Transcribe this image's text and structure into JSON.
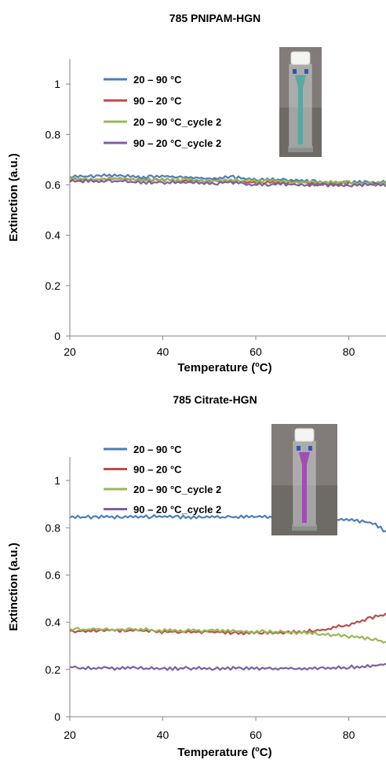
{
  "chart_data": [
    {
      "type": "line",
      "title": "785 PNIPAM-HGN",
      "xlabel": "Temperature (",
      "xlabel_sup": "o",
      "xlabel_end": "C)",
      "ylabel": "Extinction (a.u.)",
      "xlim": [
        20,
        88
      ],
      "ylim": [
        0,
        1.1
      ],
      "xticks": [
        20,
        40,
        60,
        80
      ],
      "yticks": [
        0,
        0.2,
        0.4,
        0.6,
        0.8,
        1
      ],
      "x": [
        20,
        25,
        30,
        35,
        40,
        45,
        50,
        55,
        60,
        65,
        70,
        75,
        80,
        85,
        88
      ],
      "legend_position": "top-left",
      "inset_image": "cuvette containing pale blue-green solution",
      "series": [
        {
          "name": "20 – 90 °C",
          "color": "#4a7ebb",
          "values": [
            0.63,
            0.635,
            0.64,
            0.63,
            0.635,
            0.63,
            0.625,
            0.63,
            0.62,
            0.62,
            0.615,
            0.61,
            0.61,
            0.61,
            0.61
          ]
        },
        {
          "name": "90 – 20 °C",
          "color": "#be4b48",
          "values": [
            0.62,
            0.62,
            0.625,
            0.62,
            0.62,
            0.615,
            0.615,
            0.615,
            0.61,
            0.61,
            0.61,
            0.6,
            0.605,
            0.6,
            0.605
          ]
        },
        {
          "name": "20 – 90 °C_cycle 2",
          "color": "#98b954",
          "values": [
            0.625,
            0.62,
            0.625,
            0.62,
            0.62,
            0.62,
            0.615,
            0.62,
            0.615,
            0.615,
            0.61,
            0.61,
            0.61,
            0.605,
            0.61
          ]
        },
        {
          "name": "90 – 20 °C_cycle 2",
          "color": "#7d60a0",
          "values": [
            0.615,
            0.615,
            0.615,
            0.61,
            0.61,
            0.61,
            0.605,
            0.61,
            0.6,
            0.605,
            0.6,
            0.6,
            0.6,
            0.6,
            0.6
          ]
        }
      ]
    },
    {
      "type": "line",
      "title": "785 Citrate-HGN",
      "xlabel": "Temperature (",
      "xlabel_sup": "o",
      "xlabel_end": "C)",
      "ylabel": "Extinction (a.u.)",
      "xlim": [
        20,
        88
      ],
      "ylim": [
        0,
        1.1
      ],
      "xticks": [
        20,
        40,
        60,
        80
      ],
      "yticks": [
        0,
        0.2,
        0.4,
        0.6,
        0.8,
        1
      ],
      "x": [
        20,
        25,
        30,
        35,
        40,
        45,
        50,
        55,
        60,
        65,
        70,
        75,
        80,
        85,
        88
      ],
      "legend_position": "top-left",
      "inset_image": "cuvette containing purple solution",
      "series": [
        {
          "name": "20 – 90 °C",
          "color": "#4a7ebb",
          "values": [
            0.845,
            0.845,
            0.845,
            0.845,
            0.85,
            0.845,
            0.845,
            0.845,
            0.845,
            0.845,
            0.84,
            0.84,
            0.835,
            0.82,
            0.785
          ]
        },
        {
          "name": "90 – 20 °C",
          "color": "#be4b48",
          "values": [
            0.36,
            0.365,
            0.365,
            0.365,
            0.36,
            0.36,
            0.36,
            0.355,
            0.355,
            0.355,
            0.36,
            0.37,
            0.39,
            0.42,
            0.435
          ]
        },
        {
          "name": "20 – 90 °C_cycle 2",
          "color": "#98b954",
          "values": [
            0.37,
            0.37,
            0.37,
            0.37,
            0.365,
            0.365,
            0.365,
            0.365,
            0.36,
            0.36,
            0.355,
            0.35,
            0.34,
            0.33,
            0.315
          ]
        },
        {
          "name": "90 – 20 °C_cycle 2",
          "color": "#7d60a0",
          "values": [
            0.21,
            0.205,
            0.205,
            0.205,
            0.205,
            0.205,
            0.205,
            0.205,
            0.205,
            0.205,
            0.205,
            0.205,
            0.21,
            0.215,
            0.225
          ]
        }
      ]
    }
  ]
}
